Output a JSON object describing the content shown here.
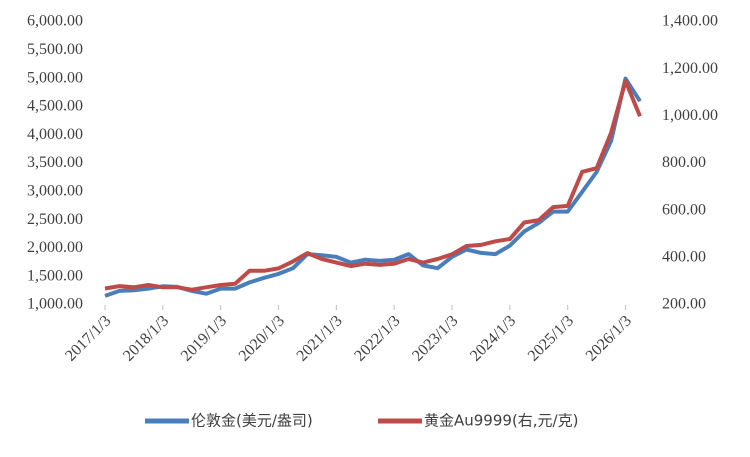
{
  "chart_data": {
    "type": "line",
    "categories": [
      "2017/1/3",
      null,
      null,
      null,
      "2018/1/3",
      null,
      null,
      null,
      "2019/1/3",
      null,
      null,
      null,
      "2020/1/3",
      null,
      null,
      null,
      "2021/1/3",
      null,
      null,
      null,
      "2022/1/3",
      null,
      null,
      null,
      "2023/1/3",
      null,
      null,
      null,
      "2024/1/3",
      null,
      null,
      null,
      "2025/1/3",
      null,
      null,
      null,
      "2026/1/3",
      null
    ],
    "series": [
      {
        "name": "伦敦金(美元/盎司)",
        "color": "#4a7ebb",
        "axis": "y",
        "values": [
          1160,
          1250,
          1260,
          1290,
          1330,
          1320,
          1250,
          1200,
          1290,
          1290,
          1400,
          1480,
          1550,
          1650,
          1900,
          1880,
          1850,
          1750,
          1800,
          1780,
          1800,
          1900,
          1700,
          1650,
          1850,
          1980,
          1920,
          1900,
          2050,
          2300,
          2450,
          2650,
          2650,
          3000,
          3350,
          3900,
          5000,
          4600
        ]
      },
      {
        "name": "黄金Au9999(右,元/克)",
        "color": "#be4b48",
        "axis": "y2",
        "values": [
          270,
          280,
          275,
          285,
          275,
          275,
          265,
          275,
          285,
          290,
          345,
          345,
          355,
          385,
          420,
          395,
          380,
          365,
          375,
          370,
          375,
          395,
          380,
          395,
          415,
          450,
          455,
          470,
          480,
          550,
          560,
          615,
          620,
          765,
          780,
          930,
          1150,
          1000
        ]
      }
    ],
    "ylim": [
      1000,
      6000
    ],
    "yticks": [
      {
        "value": 1000,
        "label": "1,000.00"
      },
      {
        "value": 1500,
        "label": "1,500.00"
      },
      {
        "value": 2000,
        "label": "2,000.00"
      },
      {
        "value": 2500,
        "label": "2,500.00"
      },
      {
        "value": 3000,
        "label": "3,000.00"
      },
      {
        "value": 3500,
        "label": "3,500.00"
      },
      {
        "value": 4000,
        "label": "4,000.00"
      },
      {
        "value": 4500,
        "label": "4,500.00"
      },
      {
        "value": 5000,
        "label": "5,000.00"
      },
      {
        "value": 5500,
        "label": "5,500.00"
      },
      {
        "value": 6000,
        "label": "6,000.00"
      }
    ],
    "y2lim": [
      200,
      1400
    ],
    "y2ticks": [
      {
        "value": 200,
        "label": "200.00"
      },
      {
        "value": 400,
        "label": "400.00"
      },
      {
        "value": 600,
        "label": "600.00"
      },
      {
        "value": 800,
        "label": "800.00"
      },
      {
        "value": 1000,
        "label": "1,000.00"
      },
      {
        "value": 1200,
        "label": "1,200.00"
      },
      {
        "value": 1400,
        "label": "1,400.00"
      }
    ],
    "grid": false,
    "legend": "bottom"
  }
}
